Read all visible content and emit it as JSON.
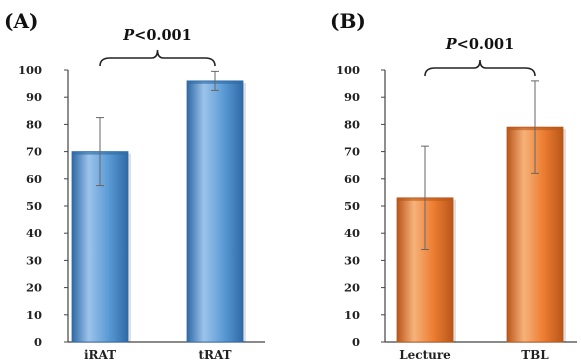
{
  "chart_data": [
    {
      "type": "bar",
      "panel_label": "(A)",
      "categories": [
        "iRAT",
        "tRAT"
      ],
      "values": [
        70,
        96
      ],
      "error": [
        12.5,
        3.5
      ],
      "ylim": [
        0,
        100
      ],
      "yticks": [
        0,
        10,
        20,
        30,
        40,
        50,
        60,
        70,
        80,
        90,
        100
      ],
      "significance": {
        "italic": "P",
        "rest": "<0.001"
      },
      "color": "#5b9bd5",
      "colors": {
        "light": "#9cc3ea",
        "mid": "#5b9bd5",
        "dark": "#2f6aa6"
      },
      "grid": false,
      "legend": "none"
    },
    {
      "type": "bar",
      "panel_label": "(B)",
      "categories": [
        "Lecture",
        "TBL"
      ],
      "values": [
        53,
        79
      ],
      "error": [
        19,
        17
      ],
      "ylim": [
        0,
        100
      ],
      "yticks": [
        0,
        10,
        20,
        30,
        40,
        50,
        60,
        70,
        80,
        90,
        100
      ],
      "significance": {
        "italic": "P",
        "rest": "<0.001"
      },
      "color": "#ed7d31",
      "colors": {
        "light": "#f6b27a",
        "mid": "#ed7d31",
        "dark": "#b9561a"
      },
      "grid": false,
      "legend": "none"
    }
  ]
}
